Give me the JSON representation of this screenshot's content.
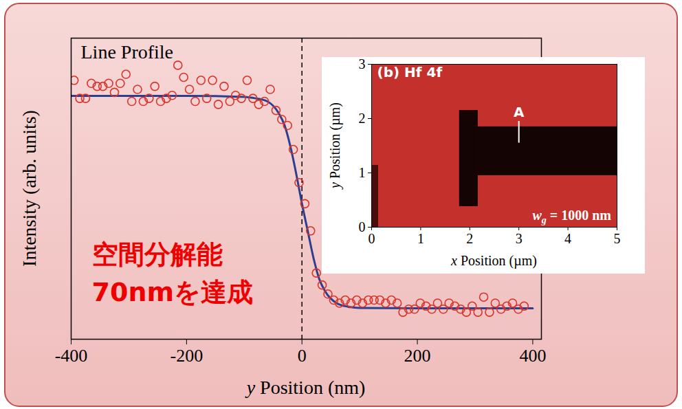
{
  "chart_data": [
    {
      "type": "scatter",
      "title": "Line Profile",
      "xlabel": "y Position (nm)",
      "ylabel": "Intensity (arb. units)",
      "annotation": [
        "空間分解能",
        "70nmを達成"
      ],
      "xlim": [
        -400,
        415
      ],
      "xticks": [
        -400,
        -200,
        0,
        200,
        400
      ],
      "ylim": [
        0,
        1
      ],
      "tick_labels": "x",
      "series": [
        {
          "type": "rule",
          "line_style": "dashed",
          "color": "#000000",
          "x": [
            0
          ]
        },
        {
          "type": "line",
          "color": "#2b3f8e",
          "x": [
            -400,
            -200,
            -100,
            -80,
            -60,
            -40,
            -30,
            -20,
            -10,
            0,
            10,
            20,
            30,
            40,
            60,
            80,
            100,
            200,
            400
          ],
          "values": [
            0.808,
            0.808,
            0.805,
            0.8,
            0.79,
            0.75,
            0.71,
            0.64,
            0.55,
            0.45,
            0.36,
            0.27,
            0.2,
            0.16,
            0.12,
            0.108,
            0.104,
            0.103,
            0.103
          ]
        },
        {
          "type": "scatter",
          "marker": "open_circle",
          "color": "#d9342b",
          "x": [
            -395,
            -385,
            -375,
            -365,
            -355,
            -345,
            -335,
            -325,
            -315,
            -305,
            -295,
            -285,
            -275,
            -265,
            -255,
            -245,
            -235,
            -225,
            -215,
            -205,
            -195,
            -185,
            -175,
            -165,
            -155,
            -145,
            -135,
            -125,
            -115,
            -105,
            -95,
            -85,
            -75,
            -65,
            -55,
            -45,
            -35,
            -25,
            -15,
            -5,
            5,
            15,
            25,
            35,
            45,
            55,
            65,
            75,
            85,
            95,
            105,
            115,
            125,
            135,
            145,
            155,
            165,
            175,
            185,
            195,
            205,
            215,
            225,
            235,
            245,
            255,
            265,
            275,
            285,
            295,
            305,
            315,
            325,
            335,
            345,
            355,
            365,
            375,
            385
          ],
          "values": [
            0.86,
            0.8,
            0.8,
            0.85,
            0.84,
            0.84,
            0.85,
            0.82,
            0.85,
            0.88,
            0.79,
            0.83,
            0.79,
            0.8,
            0.84,
            0.79,
            0.8,
            0.81,
            0.91,
            0.87,
            0.83,
            0.79,
            0.86,
            0.8,
            0.86,
            0.78,
            0.84,
            0.79,
            0.81,
            0.8,
            0.86,
            0.8,
            0.78,
            0.79,
            0.83,
            0.76,
            0.73,
            0.71,
            0.63,
            0.52,
            0.45,
            0.36,
            0.22,
            0.18,
            0.15,
            0.13,
            0.12,
            0.13,
            0.12,
            0.13,
            0.12,
            0.13,
            0.13,
            0.13,
            0.12,
            0.13,
            0.12,
            0.09,
            0.1,
            0.1,
            0.12,
            0.11,
            0.1,
            0.12,
            0.1,
            0.12,
            0.11,
            0.1,
            0.09,
            0.11,
            0.09,
            0.14,
            0.09,
            0.12,
            0.1,
            0.11,
            0.12,
            0.1,
            0.11
          ]
        }
      ]
    },
    {
      "type": "map",
      "title": "(b) Hf 4f",
      "xlabel": "x Position (µm)",
      "ylabel": "y Position (µm)",
      "note": "wg = 1000 nm",
      "xlim": [
        0,
        5
      ],
      "xticks": [
        0,
        1,
        2,
        3,
        4,
        5
      ],
      "ylim": [
        0,
        3
      ],
      "yticks": [
        0,
        1,
        2,
        3
      ],
      "color": "#c4302b",
      "regions": [
        {
          "x1": 0,
          "x2": 0.14,
          "y1": 0,
          "y2": 1.14,
          "color": "#4a0c0c"
        },
        {
          "x1": 1.79,
          "x2": 2.17,
          "y1": 0.38,
          "y2": 2.15,
          "color": "#150404"
        },
        {
          "x1": 2.17,
          "x2": 5,
          "y1": 0.95,
          "y2": 1.85,
          "color": "#150404"
        }
      ],
      "annotations": [
        {
          "text": "A",
          "x": 3.0,
          "y": [
            1.55,
            1.95
          ]
        }
      ]
    }
  ]
}
